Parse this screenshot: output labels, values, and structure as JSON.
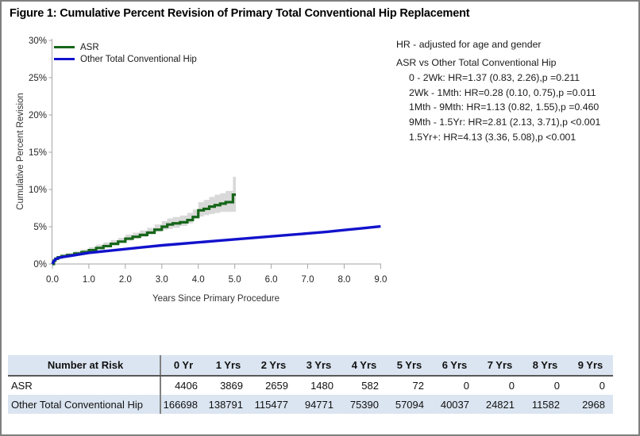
{
  "figure": {
    "title": "Figure 1: Cumulative Percent Revision of Primary Total Conventional Hip Replacement"
  },
  "hr_panel": {
    "note": "HR - adjusted for age and gender",
    "comparison": "ASR vs Other Total Conventional Hip",
    "lines": [
      "0 - 2Wk: HR=1.37 (0.83, 2.26),p =0.211",
      "2Wk - 1Mth: HR=0.28 (0.10, 0.75),p =0.011",
      "1Mth - 9Mth: HR=1.13 (0.82, 1.55),p =0.460",
      "9Mth - 1.5Yr: HR=2.81 (2.13, 3.71),p <0.001",
      "1.5Yr+: HR=4.13 (3.36, 5.08),p <0.001"
    ]
  },
  "chart_data": {
    "type": "line",
    "title": "Cumulative Percent Revision curves",
    "xlabel": "Years Since Primary Procedure",
    "ylabel": "Cumulative Percent Revision",
    "xlim": [
      0,
      9
    ],
    "ylim": [
      0,
      30
    ],
    "grid": false,
    "legend_position": "top-left",
    "x_ticks": [
      0,
      1,
      2,
      3,
      4,
      5,
      6,
      7,
      8,
      9
    ],
    "x_tick_labels": [
      "0.0",
      "1.0",
      "2.0",
      "3.0",
      "4.0",
      "5.0",
      "6.0",
      "7.0",
      "8.0",
      "9.0"
    ],
    "y_ticks": [
      0,
      5,
      10,
      15,
      20,
      25,
      30
    ],
    "y_tick_labels": [
      "0%",
      "5%",
      "10%",
      "15%",
      "20%",
      "25%",
      "30%"
    ],
    "axis_color": "#a6a6a6",
    "series": [
      {
        "name": "ASR",
        "type": "step",
        "color": "#166619",
        "ci_color": "#d9d9d9",
        "points_format": [
          "year",
          "percent",
          "ci_low",
          "ci_high"
        ],
        "points": [
          [
            0.0,
            0.0,
            0.0,
            0.0
          ],
          [
            0.04,
            0.45,
            0.35,
            0.6
          ],
          [
            0.08,
            0.7,
            0.55,
            0.9
          ],
          [
            0.15,
            0.9,
            0.75,
            1.1
          ],
          [
            0.25,
            1.05,
            0.85,
            1.3
          ],
          [
            0.4,
            1.2,
            1.0,
            1.45
          ],
          [
            0.6,
            1.4,
            1.15,
            1.7
          ],
          [
            0.8,
            1.6,
            1.3,
            1.95
          ],
          [
            1.0,
            1.85,
            1.5,
            2.25
          ],
          [
            1.2,
            2.15,
            1.8,
            2.6
          ],
          [
            1.4,
            2.4,
            2.0,
            2.9
          ],
          [
            1.6,
            2.7,
            2.3,
            3.2
          ],
          [
            1.8,
            3.0,
            2.6,
            3.5
          ],
          [
            2.0,
            3.4,
            2.95,
            3.95
          ],
          [
            2.2,
            3.65,
            3.15,
            4.2
          ],
          [
            2.4,
            3.9,
            3.4,
            4.5
          ],
          [
            2.6,
            4.2,
            3.65,
            4.85
          ],
          [
            2.8,
            4.6,
            4.0,
            5.3
          ],
          [
            3.0,
            5.0,
            4.35,
            5.75
          ],
          [
            3.15,
            5.3,
            4.6,
            6.1
          ],
          [
            3.3,
            5.45,
            4.7,
            6.3
          ],
          [
            3.5,
            5.6,
            4.85,
            6.5
          ],
          [
            3.7,
            5.9,
            5.1,
            6.85
          ],
          [
            3.85,
            6.3,
            5.45,
            7.3
          ],
          [
            4.0,
            7.2,
            6.2,
            8.3
          ],
          [
            4.15,
            7.4,
            6.35,
            8.6
          ],
          [
            4.3,
            7.7,
            6.55,
            9.0
          ],
          [
            4.45,
            7.9,
            6.7,
            9.3
          ],
          [
            4.6,
            8.1,
            6.85,
            9.5
          ],
          [
            4.75,
            8.3,
            7.0,
            9.8
          ],
          [
            4.95,
            9.3,
            7.0,
            11.7
          ],
          [
            5.03,
            9.3,
            7.0,
            11.7
          ]
        ]
      },
      {
        "name": "Other Total Conventional Hip",
        "type": "line",
        "color": "#1212cc",
        "points_format": [
          "year",
          "percent"
        ],
        "points": [
          [
            0.0,
            0.0
          ],
          [
            0.04,
            0.4
          ],
          [
            0.08,
            0.6
          ],
          [
            0.15,
            0.8
          ],
          [
            0.3,
            0.95
          ],
          [
            0.5,
            1.1
          ],
          [
            0.75,
            1.3
          ],
          [
            1.0,
            1.5
          ],
          [
            1.5,
            1.75
          ],
          [
            2.0,
            2.0
          ],
          [
            2.5,
            2.25
          ],
          [
            3.0,
            2.5
          ],
          [
            3.5,
            2.7
          ],
          [
            4.0,
            2.9
          ],
          [
            4.5,
            3.1
          ],
          [
            5.0,
            3.3
          ],
          [
            5.5,
            3.5
          ],
          [
            6.0,
            3.7
          ],
          [
            6.5,
            3.9
          ],
          [
            7.0,
            4.1
          ],
          [
            7.5,
            4.3
          ],
          [
            8.0,
            4.55
          ],
          [
            8.5,
            4.8
          ],
          [
            9.0,
            5.05
          ]
        ]
      }
    ]
  },
  "risk_table": {
    "header_label": "Number at Risk",
    "columns": [
      "0 Yr",
      "1 Yrs",
      "2 Yrs",
      "3 Yrs",
      "4 Yrs",
      "5 Yrs",
      "6 Yrs",
      "7 Yrs",
      "8 Yrs",
      "9 Yrs"
    ],
    "rows": [
      {
        "label": "ASR",
        "values": [
          "4406",
          "3869",
          "2659",
          "1480",
          "582",
          "72",
          "0",
          "0",
          "0",
          "0"
        ]
      },
      {
        "label": "Other Total Conventional Hip",
        "values": [
          "166698",
          "138791",
          "115477",
          "94771",
          "75390",
          "57094",
          "40037",
          "24821",
          "11582",
          "2968"
        ]
      }
    ]
  }
}
